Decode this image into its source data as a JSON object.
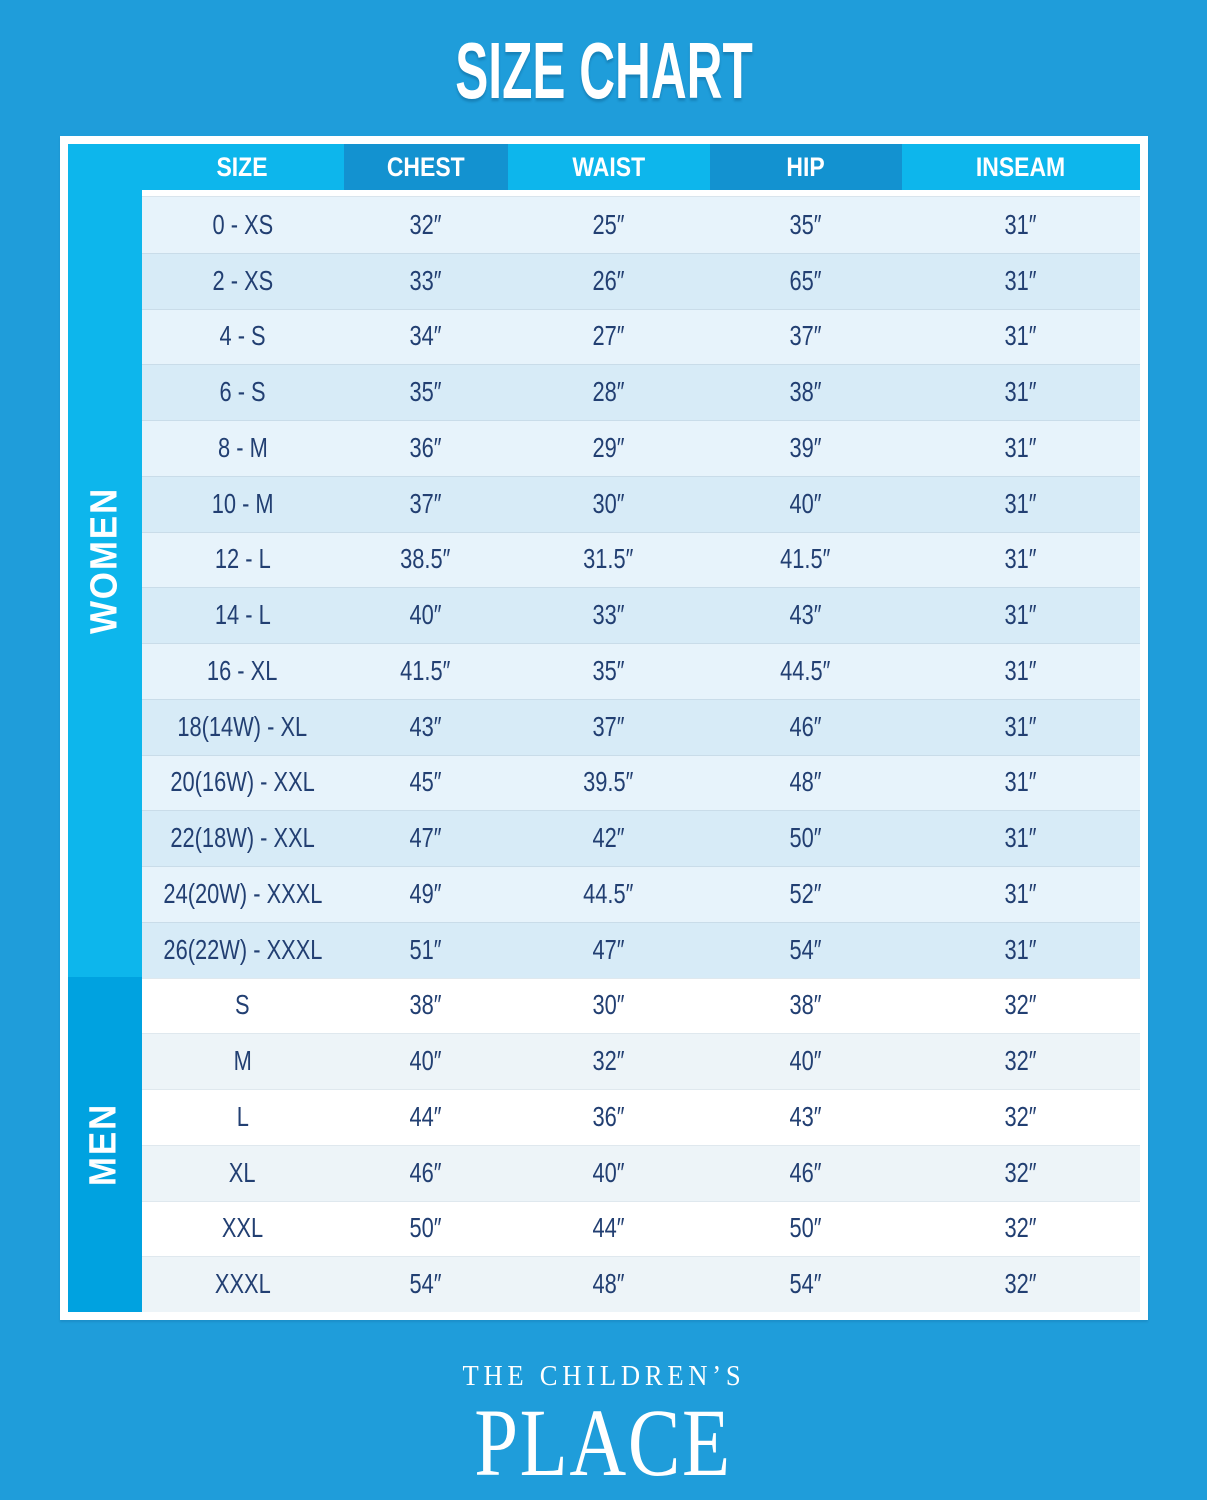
{
  "page": {
    "title": "SIZE CHART",
    "brand_line1": "THE CHILDREN’S",
    "brand_line2": "PLACE"
  },
  "colors": {
    "background": "#1f9dda",
    "accent_cyan": "#0db6ec",
    "header_dark_cell": "#1392d0",
    "men_band": "#00a2e0",
    "women_row_light": "#e7f3fb",
    "women_row_shaded": "#d7ebf7",
    "men_row_light": "#ffffff",
    "men_row_shaded": "#edf4f8",
    "text_navy": "#223f72",
    "text_white": "#ffffff"
  },
  "chart_data": {
    "type": "table",
    "title": "SIZE CHART",
    "columns": [
      "SIZE",
      "CHEST",
      "WAIST",
      "HIP",
      "INSEAM"
    ],
    "sections": [
      {
        "group": "WOMEN",
        "rows": [
          [
            "0 - XS",
            "32″",
            "25″",
            "35″",
            "31″"
          ],
          [
            "2 - XS",
            "33″",
            "26″",
            "65″",
            "31″"
          ],
          [
            "4 - S",
            "34″",
            "27″",
            "37″",
            "31″"
          ],
          [
            "6 - S",
            "35″",
            "28″",
            "38″",
            "31″"
          ],
          [
            "8 - M",
            "36″",
            "29″",
            "39″",
            "31″"
          ],
          [
            "10 - M",
            "37″",
            "30″",
            "40″",
            "31″"
          ],
          [
            "12 - L",
            "38.5″",
            "31.5″",
            "41.5″",
            "31″"
          ],
          [
            "14 - L",
            "40″",
            "33″",
            "43″",
            "31″"
          ],
          [
            "16 - XL",
            "41.5″",
            "35″",
            "44.5″",
            "31″"
          ],
          [
            "18(14W) - XL",
            "43″",
            "37″",
            "46″",
            "31″"
          ],
          [
            "20(16W) - XXL",
            "45″",
            "39.5″",
            "48″",
            "31″"
          ],
          [
            "22(18W) - XXL",
            "47″",
            "42″",
            "50″",
            "31″"
          ],
          [
            "24(20W) - XXXL",
            "49″",
            "44.5″",
            "52″",
            "31″"
          ],
          [
            "26(22W) - XXXL",
            "51″",
            "47″",
            "54″",
            "31″"
          ]
        ]
      },
      {
        "group": "MEN",
        "rows": [
          [
            "S",
            "38″",
            "30″",
            "38″",
            "32″"
          ],
          [
            "M",
            "40″",
            "32″",
            "40″",
            "32″"
          ],
          [
            "L",
            "44″",
            "36″",
            "43″",
            "32″"
          ],
          [
            "XL",
            "46″",
            "40″",
            "46″",
            "32″"
          ],
          [
            "XXL",
            "50″",
            "44″",
            "50″",
            "32″"
          ],
          [
            "XXXL",
            "54″",
            "48″",
            "54″",
            "32″"
          ]
        ]
      }
    ]
  }
}
